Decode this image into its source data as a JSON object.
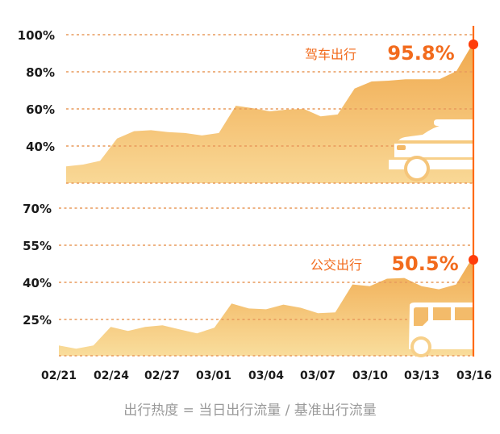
{
  "chart_data": [
    {
      "type": "area",
      "title": "驾车出行",
      "series": [
        {
          "name": "驾车出行",
          "values": [
            29,
            30,
            32,
            44,
            48,
            48.5,
            47.5,
            47,
            45.7,
            47,
            61.7,
            60.4,
            58.7,
            59.6,
            60,
            56,
            57,
            71,
            74.8,
            75.2,
            76,
            76,
            76,
            80.4,
            95.8
          ]
        }
      ],
      "x": [
        "02/21",
        "02/22",
        "02/23",
        "02/24",
        "02/25",
        "02/26",
        "02/27",
        "02/28",
        "02/29",
        "03/01",
        "03/02",
        "03/03",
        "03/04",
        "03/05",
        "03/06",
        "03/07",
        "03/08",
        "03/09",
        "03/10",
        "03/11",
        "03/12",
        "03/13",
        "03/14",
        "03/15",
        "03/16"
      ],
      "yticks": [
        "100%",
        "80%",
        "60%",
        "40%"
      ],
      "ylim": [
        20,
        100
      ],
      "annotation": {
        "label": "驾车出行",
        "value": "95.8%"
      },
      "grid": true
    },
    {
      "type": "area",
      "title": "公交出行",
      "series": [
        {
          "name": "公交出行",
          "values": [
            14.2,
            12.9,
            14.2,
            21.7,
            20.1,
            21.7,
            22.4,
            20.7,
            19.1,
            21.4,
            31.2,
            29.2,
            28.9,
            30.8,
            29.5,
            27.3,
            27.6,
            39,
            38.3,
            41.3,
            41.6,
            38.3,
            37,
            39,
            50.5
          ]
        }
      ],
      "x": [
        "02/21",
        "02/22",
        "02/23",
        "02/24",
        "02/25",
        "02/26",
        "02/27",
        "02/28",
        "02/29",
        "03/01",
        "03/02",
        "03/03",
        "03/04",
        "03/05",
        "03/06",
        "03/07",
        "03/08",
        "03/09",
        "03/10",
        "03/11",
        "03/12",
        "03/13",
        "03/14",
        "03/15",
        "03/16"
      ],
      "yticks": [
        "70%",
        "55%",
        "40%",
        "25%"
      ],
      "ylim": [
        10,
        70
      ],
      "annotation": {
        "label": "公交出行",
        "value": "50.5%"
      },
      "grid": true
    }
  ],
  "xaxis": {
    "ticks": [
      "02/21",
      "02/24",
      "02/27",
      "03/01",
      "03/04",
      "03/07",
      "03/10",
      "03/13",
      "03/16"
    ]
  },
  "top": {
    "yticks": [
      "100%",
      "80%",
      "60%",
      "40%"
    ],
    "label": "驾车出行",
    "value": "95.8%",
    "icon": "car-icon"
  },
  "bottom": {
    "yticks": [
      "70%",
      "55%",
      "40%",
      "25%"
    ],
    "label": "公交出行",
    "value": "50.5%",
    "icon": "bus-icon"
  },
  "footnote": "出行热度 = 当日出行流量 / 基准出行流量",
  "colors": {
    "accent": "#f26b1d",
    "marker": "#ff3d0a",
    "grid": "#e89a5c",
    "area_top": "#f0a94e",
    "area_bottom": "#f9d896"
  }
}
